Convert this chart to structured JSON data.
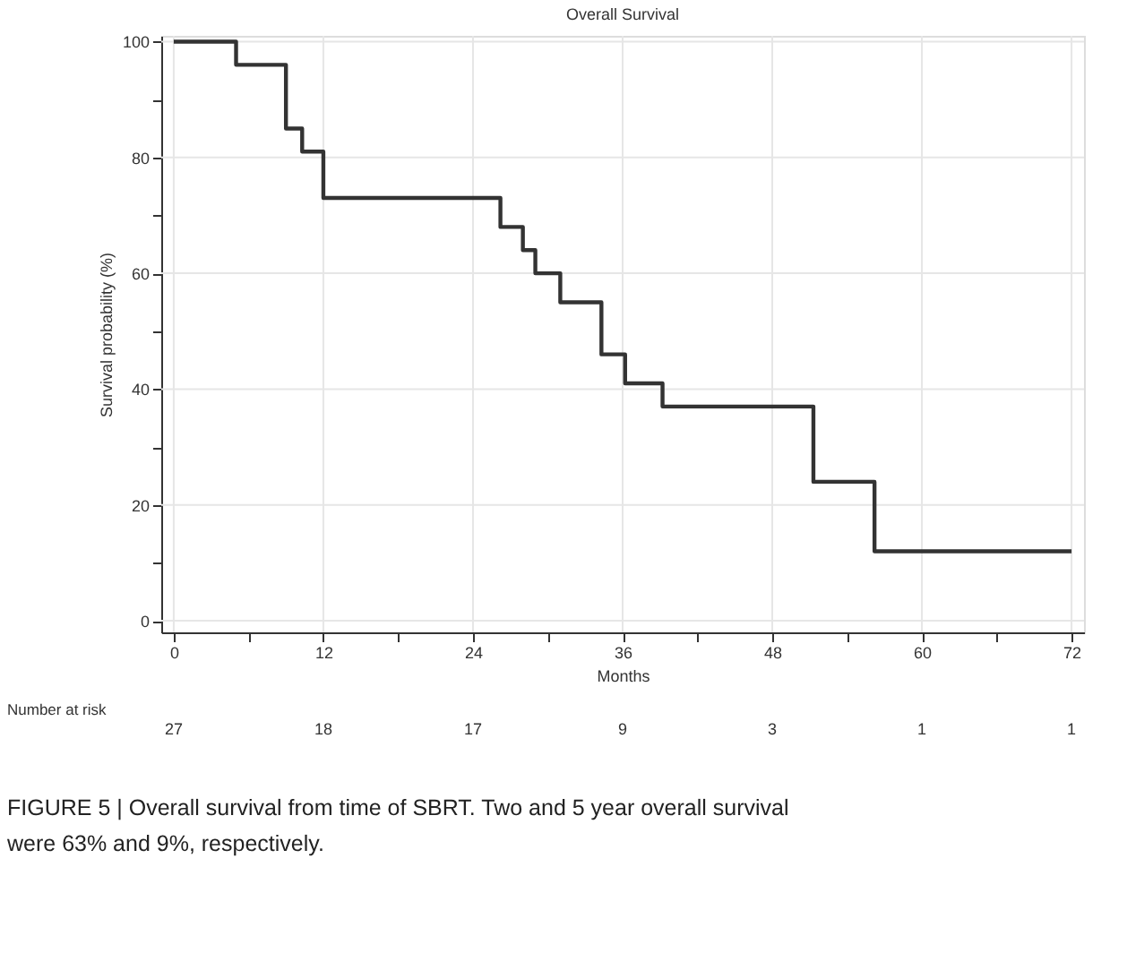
{
  "chart_data": {
    "type": "step",
    "title": "Overall Survival",
    "xlabel": "Months",
    "ylabel": "Survival probability (%)",
    "x": [
      0,
      5,
      9,
      10.3,
      12,
      26.2,
      28,
      29,
      31,
      34.3,
      36.2,
      39.2,
      51.3,
      56.2,
      72
    ],
    "series": [
      {
        "color": "#333333",
        "values": [
          100,
          96,
          85,
          81,
          73,
          68,
          64,
          60,
          55,
          46,
          41,
          37,
          24,
          12,
          12
        ]
      }
    ],
    "xlim": [
      -1,
      73
    ],
    "ylim": [
      -2,
      101
    ],
    "xticks": [
      0,
      {
        "value": 6,
        "label": null
      },
      12,
      {
        "value": 18,
        "label": null
      },
      24,
      {
        "value": 30,
        "label": null
      },
      36,
      {
        "value": 42,
        "label": null
      },
      48,
      {
        "value": 54,
        "label": null
      },
      60,
      {
        "value": 66,
        "label": null
      },
      72
    ],
    "yticks": [
      0,
      {
        "value": 10,
        "label": null
      },
      20,
      {
        "value": 30,
        "label": null
      },
      40,
      {
        "value": 50,
        "label": null
      },
      60,
      {
        "value": 70,
        "label": null
      },
      80,
      {
        "value": 90,
        "label": null
      },
      100
    ],
    "grid": true,
    "marker": "none",
    "line_style": "solid",
    "annotations": [
      "Number at risk",
      "27",
      "18",
      "17",
      "9",
      "3",
      "1",
      "1",
      "FIGURE 5 | Overall survival from time of SBRT. Two and 5 year overall survival were 63% and 9%, respectively."
    ]
  }
}
